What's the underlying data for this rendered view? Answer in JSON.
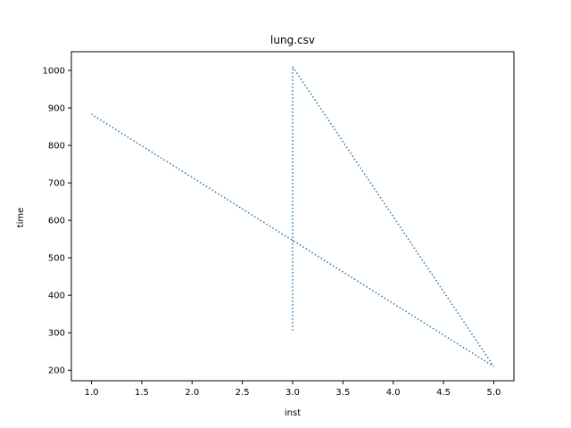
{
  "chart_data": {
    "type": "line",
    "title": "lung.csv",
    "xlabel": "inst",
    "ylabel": "time",
    "xlim": [
      0.8,
      5.2
    ],
    "ylim": [
      172,
      1050
    ],
    "xticks": [
      1.0,
      1.5,
      2.0,
      2.5,
      3.0,
      3.5,
      4.0,
      4.5,
      5.0
    ],
    "xtick_labels": [
      "1.0",
      "1.5",
      "2.0",
      "2.5",
      "3.0",
      "3.5",
      "4.0",
      "4.5",
      "5.0"
    ],
    "yticks": [
      200,
      300,
      400,
      500,
      600,
      700,
      800,
      900,
      1000
    ],
    "ytick_labels": [
      "200",
      "300",
      "400",
      "500",
      "600",
      "700",
      "800",
      "900",
      "1000"
    ],
    "grid": false,
    "series": [
      {
        "x": [
          3,
          3,
          5,
          1
        ],
        "y": [
          306,
          1010,
          210,
          883
        ],
        "color": "#1f77b4",
        "linestyle": "dotted"
      }
    ]
  }
}
